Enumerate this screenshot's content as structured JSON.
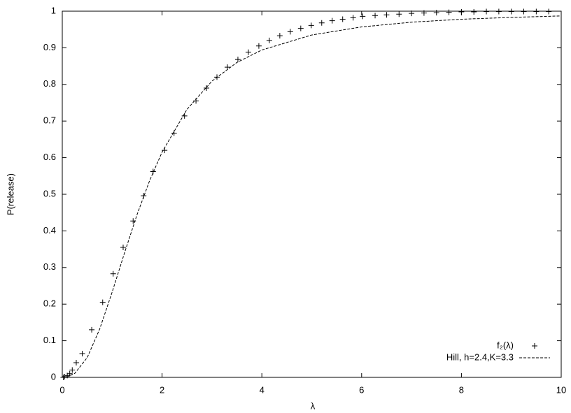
{
  "chart_data": {
    "type": "scatter",
    "xlabel": "λ",
    "ylabel": "P(release)",
    "xlim": [
      0,
      10
    ],
    "ylim": [
      0,
      1
    ],
    "xticks": [
      0,
      2,
      4,
      6,
      8,
      10
    ],
    "yticks": [
      0,
      0.1,
      0.2,
      0.3,
      0.4,
      0.5,
      0.6,
      0.7,
      0.8,
      0.9,
      1
    ],
    "legend": "lower right",
    "series": [
      {
        "name": "f₂(λ)",
        "type": "scatter",
        "color": "#000000",
        "x": [
          0.02,
          0.05,
          0.1,
          0.15,
          0.2,
          0.28,
          0.4,
          0.59,
          0.81,
          1.02,
          1.22,
          1.42,
          1.63,
          1.82,
          2.05,
          2.24,
          2.45,
          2.68,
          2.89,
          3.1,
          3.31,
          3.52,
          3.73,
          3.94,
          4.15,
          4.36,
          4.57,
          4.78,
          4.99,
          5.2,
          5.41,
          5.62,
          5.83,
          6.02,
          6.27,
          6.5,
          6.75,
          7.0,
          7.25,
          7.5,
          7.75,
          8.0,
          8.25,
          8.5,
          8.75,
          9.0,
          9.25,
          9.5,
          9.75
        ],
        "values": [
          0.0,
          0.002,
          0.005,
          0.01,
          0.02,
          0.04,
          0.065,
          0.13,
          0.205,
          0.283,
          0.355,
          0.427,
          0.496,
          0.562,
          0.62,
          0.667,
          0.714,
          0.755,
          0.79,
          0.82,
          0.847,
          0.868,
          0.888,
          0.905,
          0.92,
          0.933,
          0.944,
          0.953,
          0.961,
          0.968,
          0.974,
          0.978,
          0.982,
          0.986,
          0.988,
          0.99,
          0.992,
          0.994,
          0.995,
          0.996,
          0.997,
          0.998,
          0.998,
          0.999,
          0.999,
          0.999,
          0.999,
          0.999,
          0.999
        ]
      },
      {
        "name": "Hill, h=2.4,K=3.3",
        "type": "line",
        "color": "#000000",
        "x": [
          0,
          0.1,
          0.25,
          0.5,
          0.75,
          1,
          1.25,
          1.5,
          1.75,
          2,
          2.5,
          3,
          3.5,
          4,
          5,
          6,
          7,
          8,
          9,
          10
        ],
        "values": [
          0,
          0.0012,
          0.0108,
          0.054,
          0.132,
          0.233,
          0.341,
          0.445,
          0.537,
          0.615,
          0.732,
          0.809,
          0.86,
          0.894,
          0.935,
          0.957,
          0.97,
          0.978,
          0.983,
          0.987
        ]
      }
    ]
  }
}
